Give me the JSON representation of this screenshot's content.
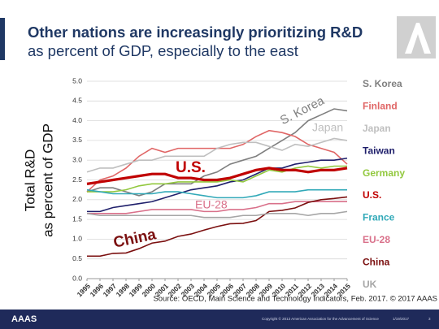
{
  "chart_data": {
    "type": "line",
    "title": "Other nations are increasingly prioritizing R&D",
    "subtitle": "as percent of GDP, especially to the east",
    "ylabel": [
      "Total R&D",
      "as percent of GDP"
    ],
    "source": "Source: OECD, Main Science and Technology Indicators, Feb. 2017. © 2017 AAAS",
    "x": [
      1995,
      1996,
      1997,
      1998,
      1999,
      2000,
      2001,
      2002,
      2003,
      2004,
      2005,
      2006,
      2007,
      2008,
      2009,
      2010,
      2011,
      2012,
      2013,
      2014,
      2015
    ],
    "xlim": [
      1995,
      2015
    ],
    "xticks": [
      1995,
      1996,
      1997,
      1998,
      1999,
      2000,
      2001,
      2002,
      2003,
      2004,
      2005,
      2006,
      2007,
      2008,
      2009,
      2010,
      2011,
      2012,
      2013,
      2014,
      2015
    ],
    "ylim": [
      0,
      5
    ],
    "yticks": [
      {
        "value": 0,
        "label": "0.0"
      },
      0.5,
      {
        "value": 1,
        "label": "1.0"
      },
      1.5,
      {
        "value": 2,
        "label": "2.0"
      },
      2.5,
      {
        "value": 3,
        "label": "3.0"
      },
      3.5,
      {
        "value": 4,
        "label": "4.0"
      },
      4.5,
      {
        "value": 5,
        "label": "5.0"
      }
    ],
    "grid": true,
    "legend": "right",
    "series": [
      {
        "name": "S. Korea",
        "color": "#7f7f7f",
        "values": [
          2.2,
          2.3,
          2.3,
          2.2,
          2.1,
          2.2,
          2.4,
          2.4,
          2.4,
          2.6,
          2.7,
          2.9,
          3.0,
          3.1,
          3.3,
          3.5,
          3.7,
          4.0,
          4.15,
          4.3,
          4.25
        ]
      },
      {
        "name": "Finland",
        "color": "#e06666",
        "values": [
          2.2,
          2.5,
          2.6,
          2.8,
          3.1,
          3.3,
          3.2,
          3.3,
          3.3,
          3.3,
          3.3,
          3.3,
          3.4,
          3.6,
          3.75,
          3.7,
          3.6,
          3.4,
          3.3,
          3.2,
          2.9
        ]
      },
      {
        "name": "Japan",
        "color": "#bfbfbf",
        "values": [
          2.7,
          2.8,
          2.8,
          2.9,
          3.0,
          3.0,
          3.1,
          3.1,
          3.1,
          3.1,
          3.3,
          3.4,
          3.45,
          3.45,
          3.35,
          3.25,
          3.4,
          3.35,
          3.45,
          3.55,
          3.5
        ]
      },
      {
        "name": "Taiwan",
        "color": "#1f1f6b",
        "values": [
          1.7,
          1.7,
          1.8,
          1.85,
          1.9,
          1.95,
          2.05,
          2.15,
          2.25,
          2.3,
          2.35,
          2.45,
          2.5,
          2.65,
          2.8,
          2.8,
          2.9,
          2.95,
          3.0,
          3.0,
          3.05
        ]
      },
      {
        "name": "Germany",
        "color": "#92c83e",
        "values": [
          2.2,
          2.2,
          2.2,
          2.25,
          2.35,
          2.4,
          2.4,
          2.45,
          2.45,
          2.45,
          2.45,
          2.5,
          2.45,
          2.6,
          2.75,
          2.7,
          2.8,
          2.85,
          2.8,
          2.85,
          2.85
        ]
      },
      {
        "name": "U.S.",
        "color": "#c00000",
        "values": [
          2.4,
          2.45,
          2.5,
          2.55,
          2.6,
          2.65,
          2.65,
          2.55,
          2.55,
          2.5,
          2.5,
          2.55,
          2.65,
          2.75,
          2.8,
          2.75,
          2.75,
          2.7,
          2.75,
          2.75,
          2.8
        ]
      },
      {
        "name": "France",
        "color": "#31a9b8",
        "values": [
          2.25,
          2.2,
          2.15,
          2.15,
          2.15,
          2.15,
          2.2,
          2.2,
          2.15,
          2.1,
          2.05,
          2.05,
          2.05,
          2.1,
          2.2,
          2.2,
          2.2,
          2.25,
          2.25,
          2.25,
          2.25
        ]
      },
      {
        "name": "EU-28",
        "color": "#d9708a",
        "values": [
          1.65,
          1.65,
          1.65,
          1.65,
          1.7,
          1.75,
          1.75,
          1.75,
          1.75,
          1.7,
          1.7,
          1.75,
          1.75,
          1.8,
          1.9,
          1.9,
          1.95,
          1.95,
          1.95,
          1.95,
          1.95
        ]
      },
      {
        "name": "China",
        "color": "#7b1010",
        "values": [
          0.57,
          0.57,
          0.64,
          0.65,
          0.76,
          0.9,
          0.95,
          1.07,
          1.13,
          1.23,
          1.32,
          1.39,
          1.4,
          1.47,
          1.7,
          1.73,
          1.79,
          1.93,
          2.0,
          2.03,
          2.07
        ]
      },
      {
        "name": "UK",
        "color": "#a6a6a6",
        "values": [
          1.65,
          1.6,
          1.6,
          1.6,
          1.6,
          1.6,
          1.6,
          1.6,
          1.6,
          1.55,
          1.55,
          1.55,
          1.6,
          1.6,
          1.65,
          1.65,
          1.65,
          1.6,
          1.65,
          1.65,
          1.7
        ]
      }
    ],
    "annotations": [
      "S. Korea",
      "Japan",
      "U.S.",
      "EU-28",
      "China"
    ]
  },
  "slide": {
    "logo": "AAAS",
    "copyright": "Copyright © 2013 American Association for the Advancement of Science",
    "date": "1/19/2017",
    "page": "3"
  }
}
